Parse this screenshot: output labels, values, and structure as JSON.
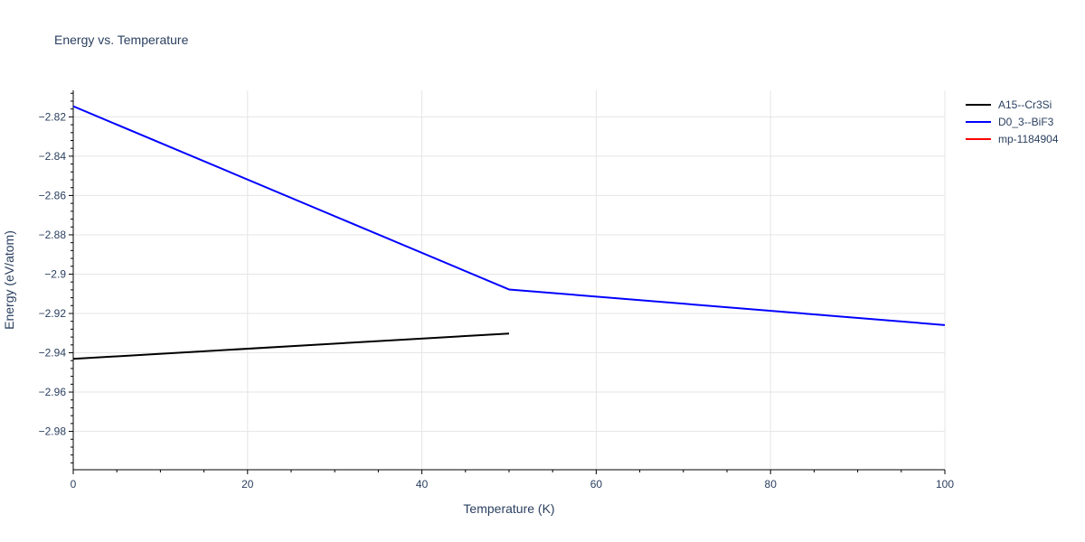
{
  "chart_data": {
    "type": "line",
    "title": "Energy vs. Temperature",
    "xlabel": "Temperature (K)",
    "ylabel": "Energy (eV/atom)",
    "xlim": [
      0,
      100
    ],
    "ylim": [
      -2.9995,
      -2.8065
    ],
    "x_ticks": [
      0,
      20,
      40,
      60,
      80,
      100
    ],
    "x_tick_labels": [
      "0",
      "20",
      "40",
      "60",
      "80",
      "100"
    ],
    "y_ticks": [
      -2.98,
      -2.96,
      -2.94,
      -2.92,
      -2.9,
      -2.88,
      -2.86,
      -2.84,
      -2.82
    ],
    "y_tick_labels": [
      "−2.98",
      "−2.96",
      "−2.94",
      "−2.92",
      "−2.9",
      "−2.88",
      "−2.86",
      "−2.84",
      "−2.82"
    ],
    "grid": true,
    "legend_position": "top-right outside",
    "series": [
      {
        "name": "A15--Cr3Si",
        "color": "#000000",
        "x": [
          0,
          50
        ],
        "y": [
          -2.9431,
          -2.9302
        ]
      },
      {
        "name": "D0_3--BiF3",
        "color": "#0000ff",
        "x": [
          0,
          50,
          100
        ],
        "y": [
          -2.8146,
          -2.9078,
          -2.9259
        ]
      },
      {
        "name": "mp-1184904",
        "color": "#ff0000",
        "x": [],
        "y": []
      }
    ]
  }
}
